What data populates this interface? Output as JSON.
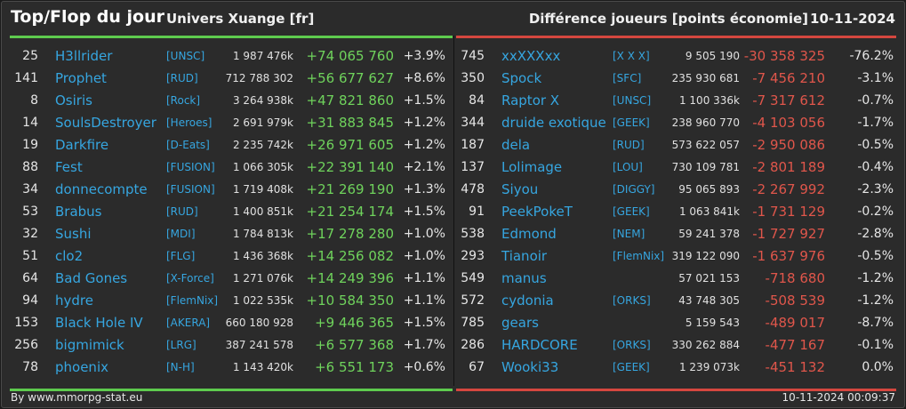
{
  "header": {
    "title": "Top/Flop du jour",
    "universe": "Univers Xuange [fr]",
    "diff_label": "Différence joueurs [points économie]",
    "date": "10-11-2024"
  },
  "top": [
    {
      "rank": "25",
      "name": "H3llrider",
      "tag": "[UNSC]",
      "points": "1 987 476k",
      "change": "+74 065 760",
      "pct": "+3.9%"
    },
    {
      "rank": "141",
      "name": "Prophet",
      "tag": "[RUD]",
      "points": "712 788 302",
      "change": "+56 677 627",
      "pct": "+8.6%"
    },
    {
      "rank": "8",
      "name": "Osiris",
      "tag": "[Rock]",
      "points": "3 264 938k",
      "change": "+47 821 860",
      "pct": "+1.5%"
    },
    {
      "rank": "14",
      "name": "SoulsDestroyer",
      "tag": "[Heroes]",
      "points": "2 691 979k",
      "change": "+31 883 845",
      "pct": "+1.2%"
    },
    {
      "rank": "19",
      "name": "Darkfire",
      "tag": "[D-Eats]",
      "points": "2 235 742k",
      "change": "+26 971 605",
      "pct": "+1.2%"
    },
    {
      "rank": "88",
      "name": "Fest",
      "tag": "[FUSION]",
      "points": "1 066 305k",
      "change": "+22 391 140",
      "pct": "+2.1%"
    },
    {
      "rank": "34",
      "name": "donnecompte",
      "tag": "[FUSION]",
      "points": "1 719 408k",
      "change": "+21 269 190",
      "pct": "+1.3%"
    },
    {
      "rank": "53",
      "name": "Brabus",
      "tag": "[RUD]",
      "points": "1 400 851k",
      "change": "+21 254 174",
      "pct": "+1.5%"
    },
    {
      "rank": "32",
      "name": "Sushi",
      "tag": "[MDI]",
      "points": "1 784 813k",
      "change": "+17 278 280",
      "pct": "+1.0%"
    },
    {
      "rank": "51",
      "name": "clo2",
      "tag": "[FLG]",
      "points": "1 436 368k",
      "change": "+14 256 082",
      "pct": "+1.0%"
    },
    {
      "rank": "64",
      "name": "Bad Gones",
      "tag": "[X-Force]",
      "points": "1 271 076k",
      "change": "+14 249 396",
      "pct": "+1.1%"
    },
    {
      "rank": "94",
      "name": "hydre",
      "tag": "[FlemNix]",
      "points": "1 022 535k",
      "change": "+10 584 350",
      "pct": "+1.1%"
    },
    {
      "rank": "153",
      "name": "Black Hole IV",
      "tag": "[AKERA]",
      "points": "660 180 928",
      "change": "+9 446 365",
      "pct": "+1.5%"
    },
    {
      "rank": "256",
      "name": "bigmimick",
      "tag": "[LRG]",
      "points": "387 241 578",
      "change": "+6 577 368",
      "pct": "+1.7%"
    },
    {
      "rank": "78",
      "name": "phoenix",
      "tag": "[N-H]",
      "points": "1 143 420k",
      "change": "+6 551 173",
      "pct": "+0.6%"
    }
  ],
  "flop": [
    {
      "rank": "745",
      "name": "xxXXXxx",
      "tag": "[X X X]",
      "points": "9 505 190",
      "change": "-30 358 325",
      "pct": "-76.2%"
    },
    {
      "rank": "350",
      "name": "Spock",
      "tag": "[SFC]",
      "points": "235 930 681",
      "change": "-7 456 210",
      "pct": "-3.1%"
    },
    {
      "rank": "84",
      "name": "Raptor X",
      "tag": "[UNSC]",
      "points": "1 100 336k",
      "change": "-7 317 612",
      "pct": "-0.7%"
    },
    {
      "rank": "344",
      "name": "druide exotique",
      "tag": "[GEEK]",
      "points": "238 960 770",
      "change": "-4 103 056",
      "pct": "-1.7%"
    },
    {
      "rank": "187",
      "name": "dela",
      "tag": "[RUD]",
      "points": "573 622 057",
      "change": "-2 950 086",
      "pct": "-0.5%"
    },
    {
      "rank": "137",
      "name": "Lolimage",
      "tag": "[LOU]",
      "points": "730 109 781",
      "change": "-2 801 189",
      "pct": "-0.4%"
    },
    {
      "rank": "478",
      "name": "Siyou",
      "tag": "[DIGGY]",
      "points": "95 065 893",
      "change": "-2 267 992",
      "pct": "-2.3%"
    },
    {
      "rank": "91",
      "name": "PeekPokeT",
      "tag": "[GEEK]",
      "points": "1 063 841k",
      "change": "-1 731 129",
      "pct": "-0.2%"
    },
    {
      "rank": "538",
      "name": "Edmond",
      "tag": "[NEM]",
      "points": "59 241 378",
      "change": "-1 727 927",
      "pct": "-2.8%"
    },
    {
      "rank": "293",
      "name": "Tianoir",
      "tag": "[FlemNix]",
      "points": "319 122 090",
      "change": "-1 637 976",
      "pct": "-0.5%"
    },
    {
      "rank": "549",
      "name": "manus",
      "tag": "",
      "points": "57 021 153",
      "change": "-718 680",
      "pct": "-1.2%"
    },
    {
      "rank": "572",
      "name": "cydonia",
      "tag": "[ORKS]",
      "points": "43 748 305",
      "change": "-508 539",
      "pct": "-1.2%"
    },
    {
      "rank": "785",
      "name": "gears",
      "tag": "",
      "points": "5 159 543",
      "change": "-489 017",
      "pct": "-8.7%"
    },
    {
      "rank": "286",
      "name": "HARDCORE",
      "tag": "[ORKS]",
      "points": "330 262 884",
      "change": "-477 167",
      "pct": "-0.1%"
    },
    {
      "rank": "67",
      "name": "Wooki33",
      "tag": "[GEEK]",
      "points": "1 239 073k",
      "change": "-451 132",
      "pct": "0.0%"
    }
  ],
  "footer": {
    "source": "By www.mmorpg-stat.eu",
    "timestamp": "10-11-2024 00:09:37"
  },
  "colors": {
    "positive": "#6fd35c",
    "negative": "#e0564b",
    "link": "#36a6e0",
    "top_border": "#5ecb4e",
    "flop_border": "#d5473f"
  }
}
